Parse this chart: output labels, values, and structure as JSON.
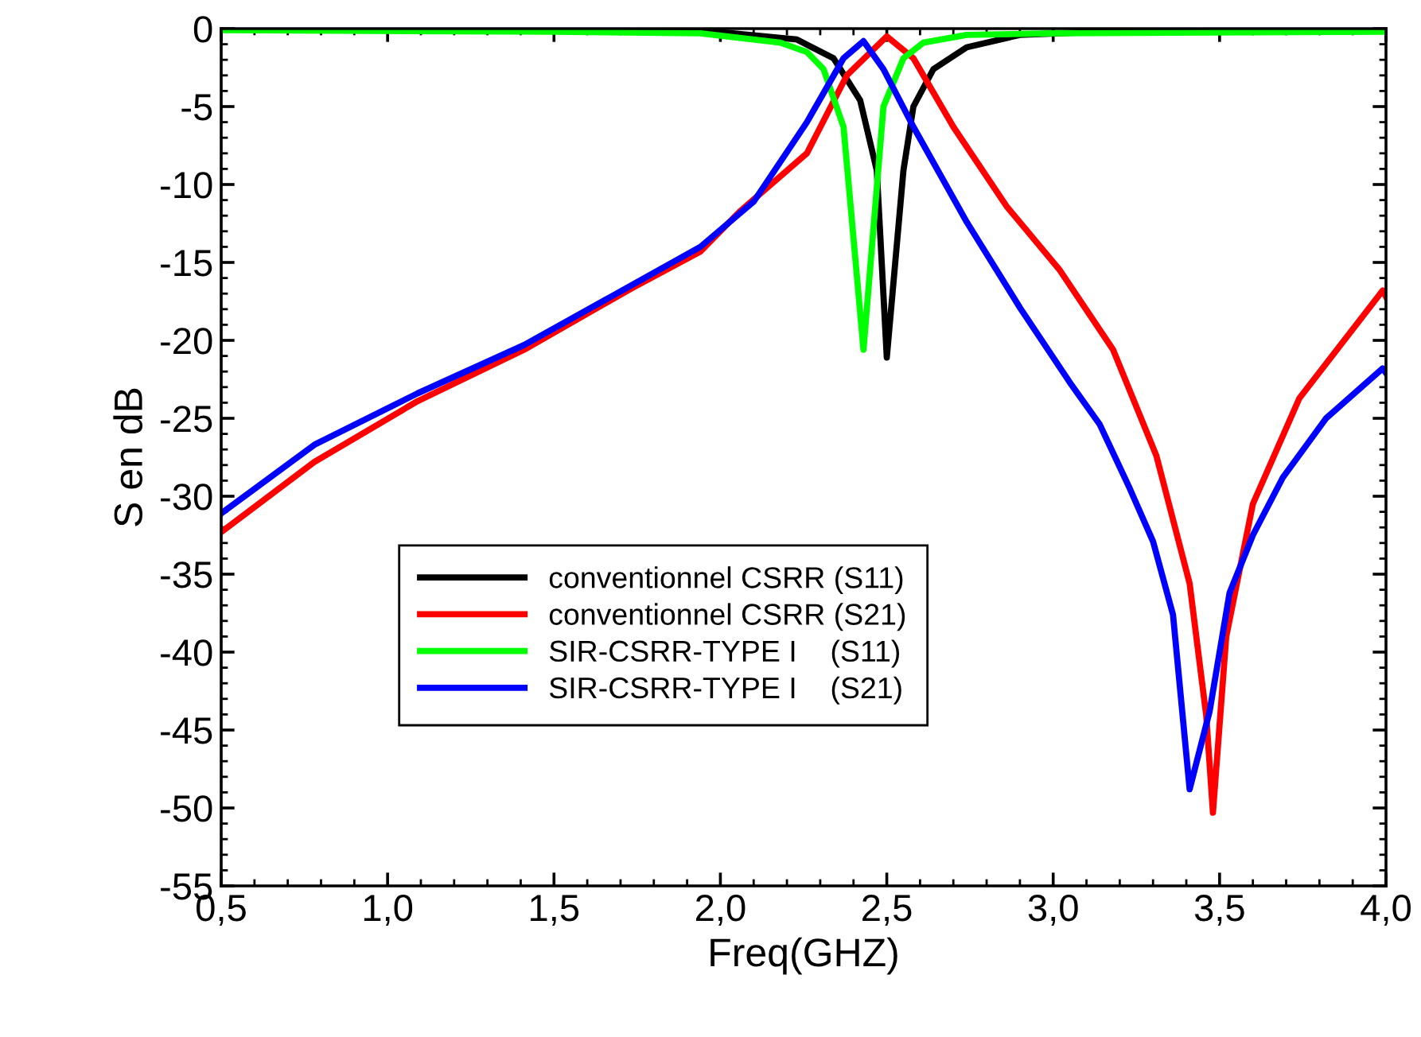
{
  "chart_data": {
    "type": "line",
    "xlabel": "Freq(GHZ)",
    "ylabel": "S en dB",
    "xlim": [
      0.5,
      4.0
    ],
    "ylim": [
      -55,
      0
    ],
    "xticks": [
      {
        "value": 0.5,
        "label": "0,5"
      },
      {
        "value": 1.0,
        "label": "1,0"
      },
      {
        "value": 1.5,
        "label": "1,5"
      },
      {
        "value": 2.0,
        "label": "2,0"
      },
      {
        "value": 2.5,
        "label": "2,5"
      },
      {
        "value": 3.0,
        "label": "3,0"
      },
      {
        "value": 3.5,
        "label": "3,5"
      },
      {
        "value": 4.0,
        "label": "4,0"
      }
    ],
    "yticks": [
      -55,
      -50,
      -45,
      -40,
      -35,
      -30,
      -25,
      -20,
      -15,
      -10,
      -5,
      0
    ],
    "grid": false,
    "legend": "bottom left",
    "marker": "none",
    "line_style": "solid",
    "series": [
      {
        "name": "conventionnel CSRR (S11)",
        "color": "#000000",
        "x": [
          0.5,
          1.0,
          1.5,
          1.94,
          2.23,
          2.34,
          2.42,
          2.47,
          2.5,
          2.55,
          2.58,
          2.64,
          2.74,
          2.9,
          3.14,
          3.5,
          4.0
        ],
        "values": [
          0,
          0,
          0,
          -0.1,
          -0.7,
          -1.9,
          -4.6,
          -9.1,
          -21.1,
          -9.1,
          -5.0,
          -2.6,
          -1.2,
          -0.4,
          -0.2,
          -0.1,
          -0.1
        ]
      },
      {
        "name": "conventionnel CSRR (S21)",
        "color": "#ff0000",
        "x": [
          0.5,
          0.78,
          1.09,
          1.41,
          1.73,
          1.94,
          2.06,
          2.26,
          2.38,
          2.5,
          2.58,
          2.7,
          2.86,
          3.02,
          3.18,
          3.31,
          3.41,
          3.46,
          3.48,
          3.52,
          3.6,
          3.74,
          3.99,
          4.0
        ],
        "values": [
          -32.3,
          -27.8,
          -23.9,
          -20.6,
          -16.7,
          -14.3,
          -11.7,
          -8.0,
          -3.0,
          -0.5,
          -1.9,
          -6.3,
          -11.4,
          -15.5,
          -20.6,
          -27.4,
          -35.6,
          -44.1,
          -50.3,
          -39.0,
          -30.5,
          -23.7,
          -16.8,
          -17.2
        ]
      },
      {
        "name": "SIR-CSRR-TYPE I    (S11)",
        "color": "#00ff00",
        "x": [
          0.5,
          1.5,
          1.94,
          2.18,
          2.26,
          2.31,
          2.37,
          2.43,
          2.49,
          2.55,
          2.61,
          2.74,
          3.0,
          4.0
        ],
        "values": [
          -0.1,
          -0.2,
          -0.3,
          -0.9,
          -1.5,
          -2.6,
          -6.3,
          -20.6,
          -5.0,
          -1.9,
          -0.9,
          -0.4,
          -0.3,
          -0.2
        ]
      },
      {
        "name": "SIR-CSRR-TYPE I    (S21)",
        "color": "#0000ff",
        "x": [
          0.5,
          0.78,
          1.09,
          1.41,
          1.73,
          1.94,
          2.1,
          2.26,
          2.37,
          2.43,
          2.49,
          2.58,
          2.74,
          2.9,
          3.05,
          3.14,
          3.23,
          3.3,
          3.36,
          3.41,
          3.47,
          3.53,
          3.6,
          3.69,
          3.82,
          3.99,
          4.0
        ],
        "values": [
          -31.1,
          -26.7,
          -23.4,
          -20.3,
          -16.5,
          -14.0,
          -11.1,
          -6.0,
          -1.9,
          -0.8,
          -2.6,
          -6.3,
          -12.4,
          -17.9,
          -22.7,
          -25.4,
          -29.5,
          -32.9,
          -37.6,
          -48.8,
          -43.8,
          -36.2,
          -32.5,
          -28.8,
          -25.0,
          -21.8,
          -22.1
        ]
      }
    ]
  }
}
